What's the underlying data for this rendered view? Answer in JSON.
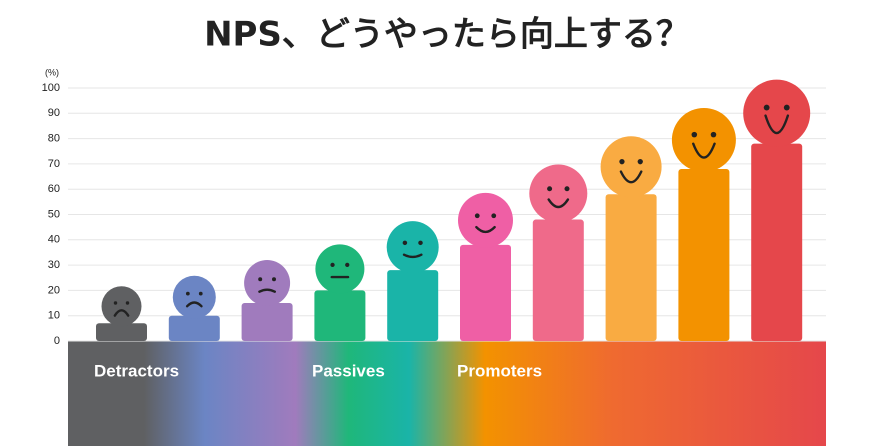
{
  "chart_data": {
    "type": "bar",
    "title": "NPS、どうやったら向上する？",
    "y_axis_label": "(%)",
    "values": [
      7,
      10,
      15,
      20,
      28,
      38,
      48,
      58,
      68,
      78
    ],
    "colors": [
      "#5f6062",
      "#6b85c4",
      "#a07bbd",
      "#1fb77a",
      "#1ab4a8",
      "#ef5fa5",
      "#ef6a8a",
      "#f9ab42",
      "#f39200",
      "#e5474b"
    ],
    "ylim": [
      0,
      100
    ],
    "yticks": [
      0,
      10,
      20,
      30,
      40,
      50,
      60,
      70,
      80,
      90,
      100
    ],
    "grid": true,
    "group_labels": [
      "Detractors",
      "Passives",
      "Promoters"
    ]
  }
}
